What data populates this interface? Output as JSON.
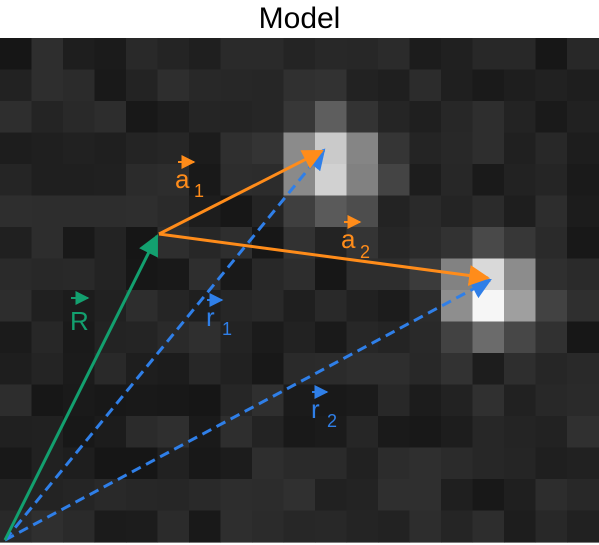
{
  "title": "Model",
  "colors": {
    "orange": "#ff8c1a",
    "blue": "#2f7fe8",
    "green": "#13a06f",
    "background_pixel_base": "#1c1c1c"
  },
  "vectors": {
    "R": {
      "letter": "R",
      "subscript": "",
      "color": "green",
      "style": "solid"
    },
    "a1": {
      "letter": "a",
      "subscript": "1",
      "color": "orange",
      "style": "solid"
    },
    "a2": {
      "letter": "a",
      "subscript": "2",
      "color": "orange",
      "style": "solid"
    },
    "r1": {
      "letter": "r",
      "subscript": "1",
      "color": "blue",
      "style": "dashed"
    },
    "r2": {
      "letter": "r",
      "subscript": "2",
      "color": "blue",
      "style": "dashed"
    }
  },
  "image": {
    "type": "pixel-grid",
    "description_visible": false
  }
}
